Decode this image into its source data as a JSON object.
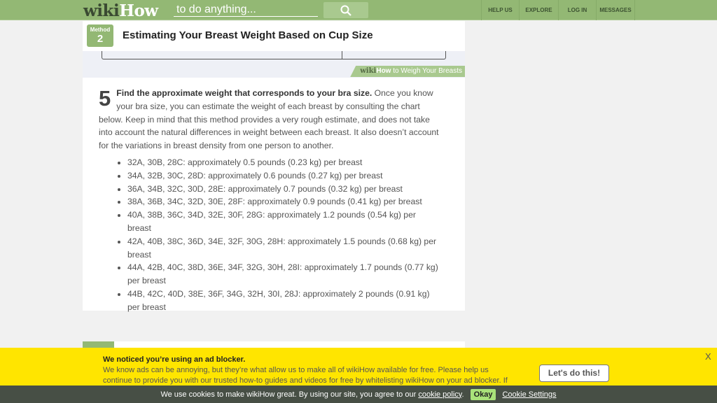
{
  "header": {
    "logo_wiki": "wiki",
    "logo_how": "How",
    "search_placeholder": "to do anything...",
    "nav": [
      "HELP US",
      "EXPLORE",
      "LOG IN",
      "MESSAGES"
    ]
  },
  "method": {
    "label": "Method",
    "number": "2",
    "title": "Estimating Your Breast Weight Based on Cup Size"
  },
  "image_caption": {
    "wiki": "wiki",
    "how": "How",
    "text": " to Weigh Your Breasts"
  },
  "step": {
    "number": "5",
    "bold": "Find the approximate weight that corresponds to your bra size.",
    "text": " Once you know your bra size, you can estimate the weight of each breast by consulting the chart below. Keep in mind that this method provides a very rough estimate, and does not take into account the natural differences in weight between each breast. It also doesn’t account for the variations in breast density from one person to another.",
    "items": [
      "32A, 30B, 28C: approximately 0.5 pounds (0.23 kg) per breast",
      "34A, 32B, 30C, 28D: approximately 0.6 pounds (0.27 kg) per breast",
      "36A, 34B, 32C, 30D, 28E: approximately 0.7 pounds (0.32 kg) per breast",
      "38A, 36B, 34C, 32D, 30E, 28F: approximately 0.9 pounds (0.41 kg) per breast",
      "40A, 38B, 36C, 34D, 32E, 30F, 28G: approximately 1.2 pounds (0.54 kg) per breast",
      "42A, 40B, 38C, 36D, 34E, 32F, 30G, 28H: approximately 1.5 pounds (0.68 kg) per breast",
      "44A, 42B, 40C, 38D, 36E, 34F, 32G, 30H, 28I: approximately 1.7 pounds (0.77 kg) per breast",
      "44B, 42C, 40D, 38E, 36F, 34G, 32H, 30I, 28J: approximately 2 pounds (0.91 kg) per breast"
    ]
  },
  "adblock": {
    "title": "We noticed you’re using an ad blocker.",
    "body": "We know ads can be annoying, but they’re what allow us to make all of wikiHow available for free. Please help us continue to provide you with our trusted how-to guides and videos for free by whitelisting wikiHow on your ad blocker. If you really",
    "button": "Let's do this!",
    "close": "X"
  },
  "cookie": {
    "text": "We use cookies to make wikiHow great. By using our site, you agree to our",
    "link": "cookie policy",
    "period": ".",
    "okay": "Okay",
    "settings": "Cookie Settings"
  }
}
